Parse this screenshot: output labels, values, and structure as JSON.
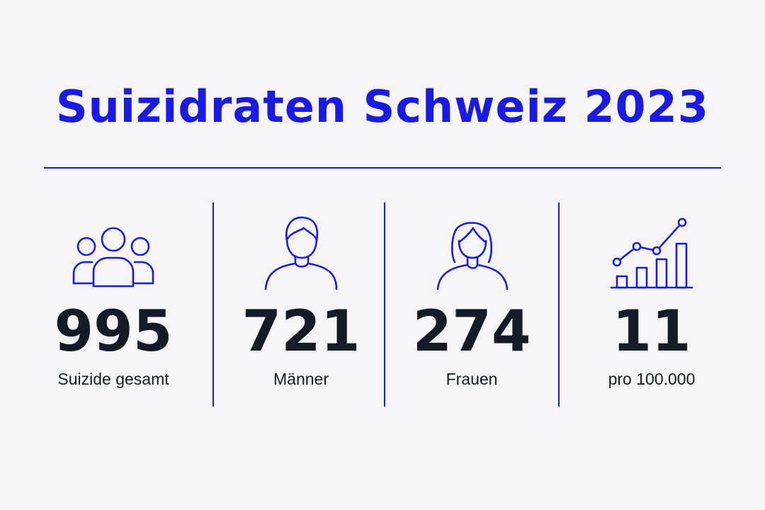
{
  "title": "Suizidraten Schweiz 2023",
  "colors": {
    "accent": "#1a1ae6",
    "text": "#141a26",
    "background": "#f6f6f8"
  },
  "stats": [
    {
      "icon": "group-icon",
      "value": "995",
      "label": "Suizide gesamt"
    },
    {
      "icon": "man-icon",
      "value": "721",
      "label": "Männer"
    },
    {
      "icon": "woman-icon",
      "value": "274",
      "label": "Frauen"
    },
    {
      "icon": "rising-chart-icon",
      "value": "11",
      "label": "pro 100.000"
    }
  ]
}
